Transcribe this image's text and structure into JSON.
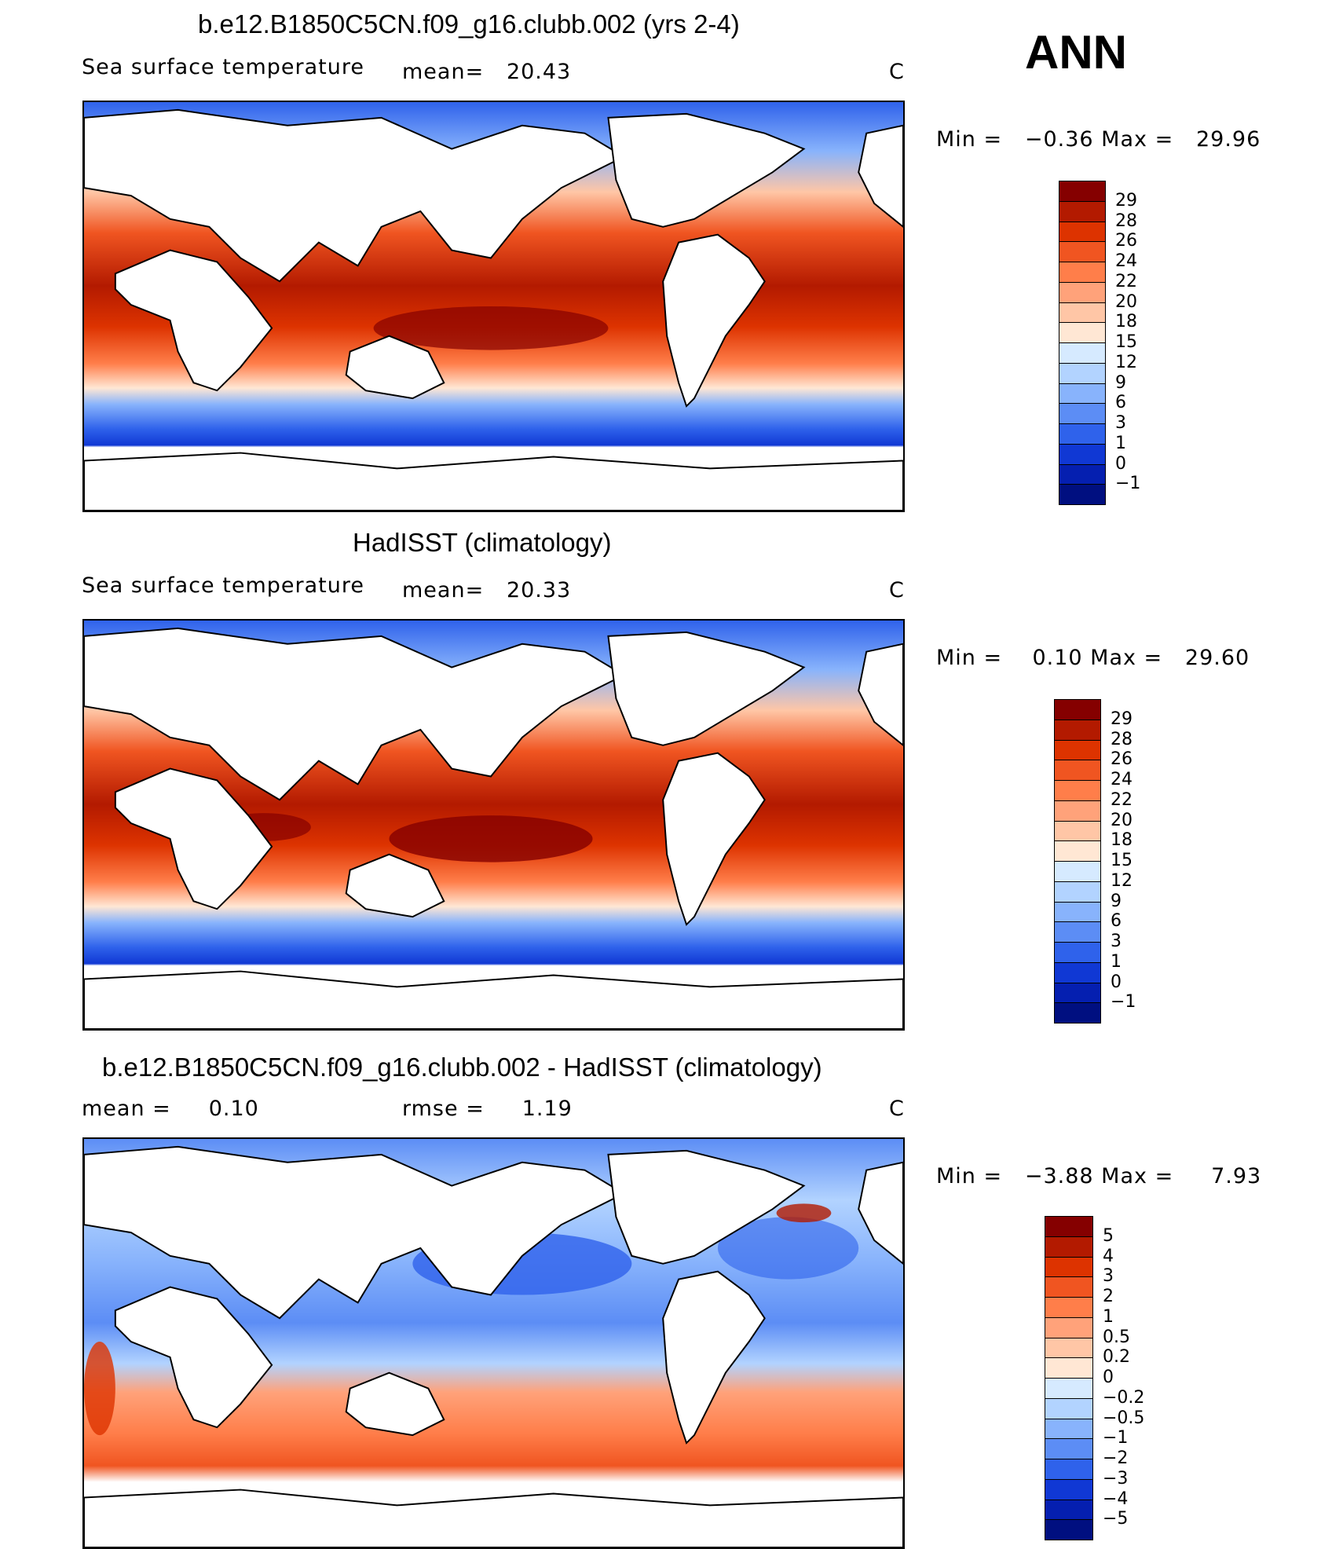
{
  "season": "ANN",
  "panels": [
    {
      "title": "b.e12.B1850C5CN.f09_g16.clubb.002 (yrs 2-4)",
      "left_text": "Sea surface temperature",
      "mid_text": "mean=   20.43",
      "units": "C",
      "minmax": "Min =   −0.36 Max =   29.96",
      "colorbar_labels": [
        "29",
        "28",
        "26",
        "24",
        "22",
        "20",
        "18",
        "15",
        "12",
        "9",
        "6",
        "3",
        "1",
        "0",
        "−1"
      ],
      "colorbar_colors": [
        "#850000",
        "#b31a00",
        "#dd3300",
        "#f05521",
        "#ff7e4a",
        "#ffa27a",
        "#ffc6a6",
        "#ffe7d4",
        "#d6eaff",
        "#b2d3ff",
        "#88b3fc",
        "#5c8df5",
        "#2f62eb",
        "#1038d4",
        "#051fb0",
        "#000f80"
      ]
    },
    {
      "title": "HadISST (climatology)",
      "left_text": "Sea surface temperature",
      "mid_text": "mean=   20.33",
      "units": "C",
      "minmax": "Min =    0.10 Max =   29.60",
      "colorbar_labels": [
        "29",
        "28",
        "26",
        "24",
        "22",
        "20",
        "18",
        "15",
        "12",
        "9",
        "6",
        "3",
        "1",
        "0",
        "−1"
      ],
      "colorbar_colors": [
        "#850000",
        "#b31a00",
        "#dd3300",
        "#f05521",
        "#ff7e4a",
        "#ffa27a",
        "#ffc6a6",
        "#ffe7d4",
        "#d6eaff",
        "#b2d3ff",
        "#88b3fc",
        "#5c8df5",
        "#2f62eb",
        "#1038d4",
        "#051fb0",
        "#000f80"
      ]
    },
    {
      "title": "b.e12.B1850C5CN.f09_g16.clubb.002 - HadISST (climatology)",
      "left_text": "mean =     0.10",
      "mid_text": "rmse =     1.19",
      "units": "C",
      "minmax": "Min =   −3.88 Max =     7.93",
      "colorbar_labels": [
        "5",
        "4",
        "3",
        "2",
        "1",
        "0.5",
        "0.2",
        "0",
        "−0.2",
        "−0.5",
        "−1",
        "−2",
        "−3",
        "−4",
        "−5"
      ],
      "colorbar_colors": [
        "#850000",
        "#b31a00",
        "#dd3300",
        "#f05521",
        "#ff7e4a",
        "#ffa27a",
        "#ffc6a6",
        "#ffe7d4",
        "#d6eaff",
        "#b2d3ff",
        "#88b3fc",
        "#5c8df5",
        "#2f62eb",
        "#1038d4",
        "#051fb0",
        "#000f80"
      ]
    }
  ]
}
